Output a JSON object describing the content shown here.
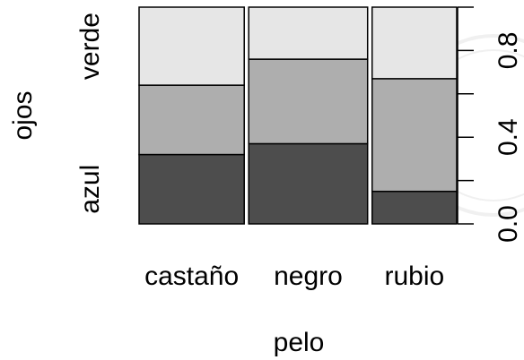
{
  "chart_data": {
    "type": "spineplot",
    "title": "",
    "xlabel": "pelo",
    "ylabel": "ojos",
    "categories": [
      "castaño",
      "negro",
      "rubio"
    ],
    "widths": [
      0.46,
      0.52,
      0.37
    ],
    "stack_order_bottom_to_top": [
      "azul",
      "(sin etiqueta)",
      "verde"
    ],
    "y_level_labels": [
      "azul",
      "verde"
    ],
    "series": [
      {
        "values": [
          0.32,
          0.37,
          0.15
        ],
        "color": "#4d4d4d"
      },
      {
        "values": [
          0.32,
          0.39,
          0.52
        ],
        "color": "#aeaeae"
      },
      {
        "values": [
          0.36,
          0.24,
          0.33
        ],
        "color": "#e6e6e6"
      }
    ],
    "right_axis": {
      "ticks": [
        0.0,
        0.2,
        0.4,
        0.6,
        0.8,
        1.0
      ],
      "tick_labels": [
        "0.0",
        "",
        "0.4",
        "",
        "0.8",
        ""
      ]
    }
  }
}
